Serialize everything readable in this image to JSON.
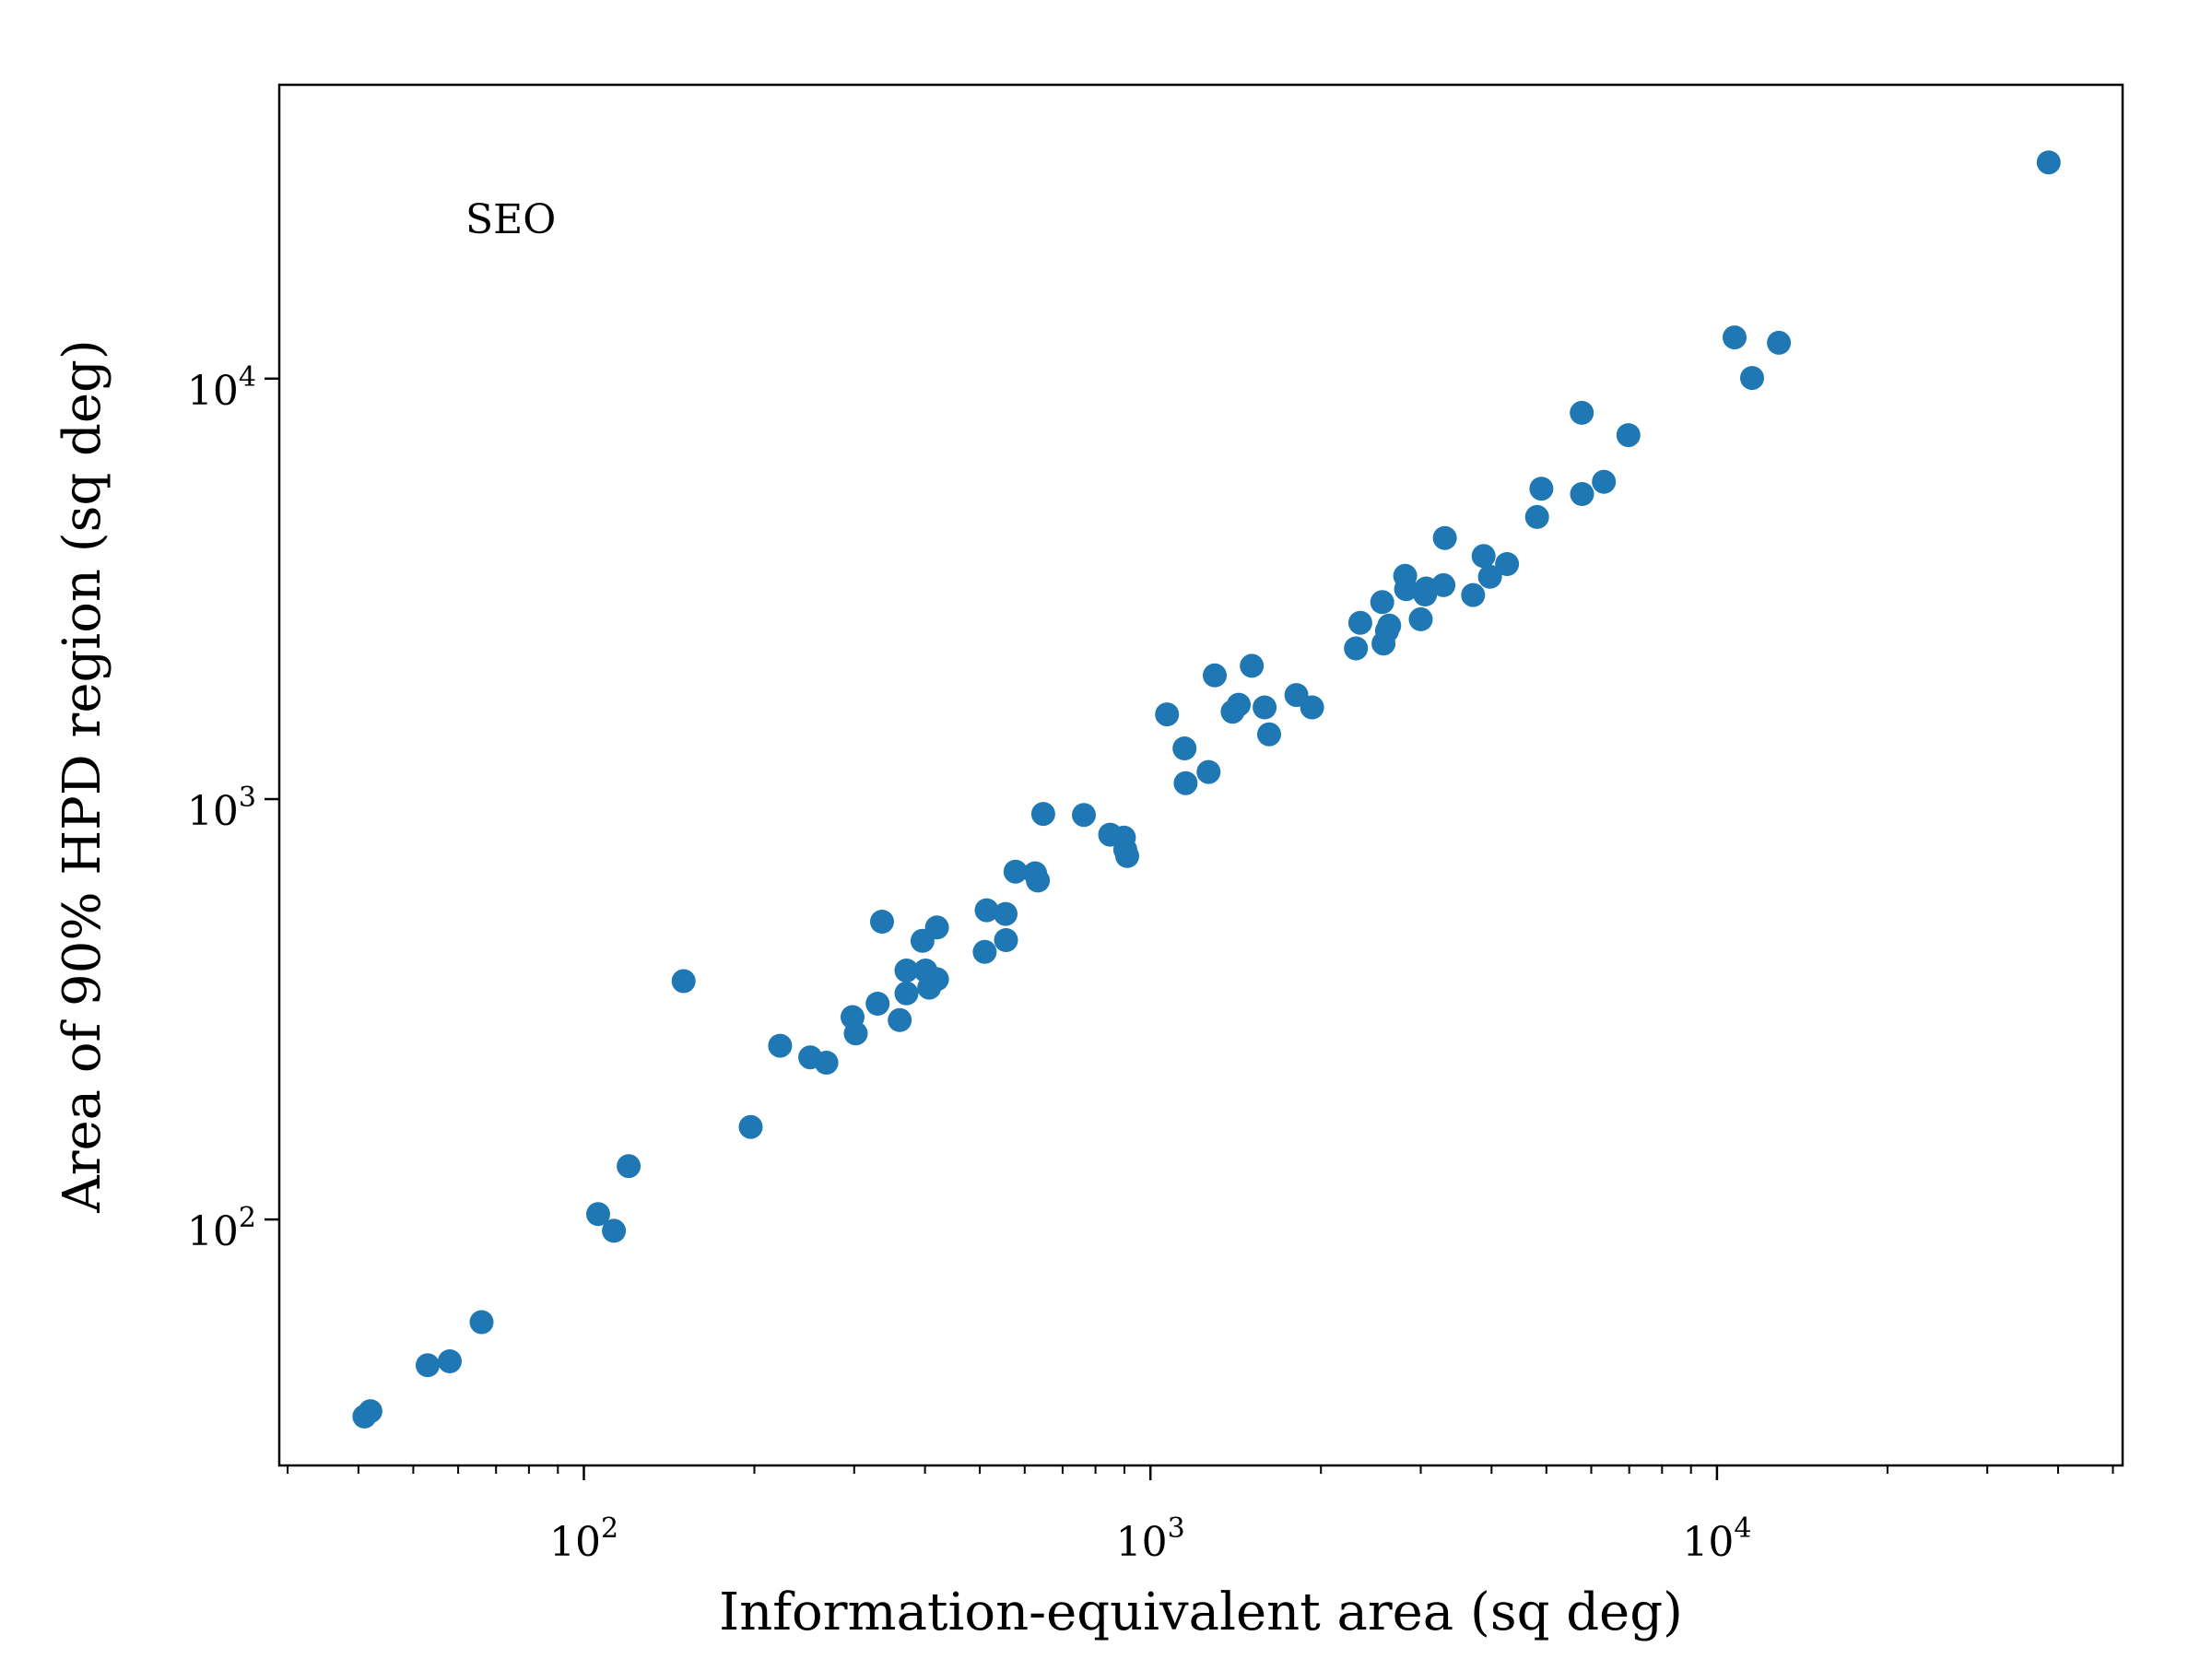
{
  "chart_data": {
    "type": "scatter",
    "annotation": "SEO",
    "xlabel": "Information-equivalent area (sq deg)",
    "ylabel": "Area of 90% HPD region (sq deg)",
    "xscale": "log",
    "yscale": "log",
    "xlim": [
      29,
      52000
    ],
    "ylim": [
      26,
      50000
    ],
    "xticks": [
      {
        "base": "10",
        "exp": "2",
        "value": 100
      },
      {
        "base": "10",
        "exp": "3",
        "value": 1000
      },
      {
        "base": "10",
        "exp": "4",
        "value": 10000
      }
    ],
    "yticks": [
      {
        "base": "10",
        "exp": "2",
        "value": 100
      },
      {
        "base": "10",
        "exp": "3",
        "value": 1000
      },
      {
        "base": "10",
        "exp": "4",
        "value": 10000
      }
    ],
    "grid": false,
    "marker_color": "#1f77b4",
    "points": [
      [
        41,
        34
      ],
      [
        42,
        35
      ],
      [
        53,
        45
      ],
      [
        58,
        46
      ],
      [
        66,
        57
      ],
      [
        106,
        103
      ],
      [
        113,
        94
      ],
      [
        120,
        134
      ],
      [
        150,
        369
      ],
      [
        197,
        166
      ],
      [
        222,
        259
      ],
      [
        251,
        243
      ],
      [
        268,
        236
      ],
      [
        298,
        303
      ],
      [
        302,
        277
      ],
      [
        330,
        326
      ],
      [
        336,
        511
      ],
      [
        361,
        298
      ],
      [
        371,
        345
      ],
      [
        371,
        391
      ],
      [
        396,
        460
      ],
      [
        401,
        391
      ],
      [
        407,
        356
      ],
      [
        420,
        373
      ],
      [
        420,
        495
      ],
      [
        510,
        433
      ],
      [
        514,
        544
      ],
      [
        555,
        533
      ],
      [
        556,
        462
      ],
      [
        578,
        672
      ],
      [
        626,
        666
      ],
      [
        633,
        640
      ],
      [
        647,
        922
      ],
      [
        763,
        917
      ],
      [
        849,
        823
      ],
      [
        898,
        810
      ],
      [
        903,
        758
      ],
      [
        910,
        732
      ],
      [
        1070,
        1590
      ],
      [
        1149,
        1320
      ],
      [
        1154,
        1091
      ],
      [
        1267,
        1160
      ],
      [
        1299,
        1969
      ],
      [
        1397,
        1614
      ],
      [
        1432,
        1677
      ],
      [
        1510,
        2075
      ],
      [
        1591,
        1652
      ],
      [
        1620,
        1426
      ],
      [
        1810,
        1768
      ],
      [
        1929,
        1652
      ],
      [
        2306,
        2283
      ],
      [
        2347,
        2627
      ],
      [
        2566,
        2941
      ],
      [
        2579,
        2344
      ],
      [
        2616,
        2512
      ],
      [
        2640,
        2586
      ],
      [
        2816,
        3395
      ],
      [
        2827,
        3158
      ],
      [
        3001,
        2677
      ],
      [
        3054,
        3066
      ],
      [
        3068,
        3169
      ],
      [
        3290,
        3227
      ],
      [
        3309,
        4178
      ],
      [
        3712,
        3057
      ],
      [
        3874,
        3785
      ],
      [
        3976,
        3378
      ],
      [
        4261,
        3622
      ],
      [
        4813,
        4689
      ],
      [
        4899,
        5474
      ],
      [
        5772,
        8293
      ],
      [
        5780,
        5316
      ],
      [
        6317,
        5685
      ],
      [
        6977,
        7340
      ],
      [
        10743,
        12532
      ],
      [
        11535,
        10036
      ],
      [
        12865,
        12169
      ],
      [
        38513,
        32695
      ]
    ]
  }
}
